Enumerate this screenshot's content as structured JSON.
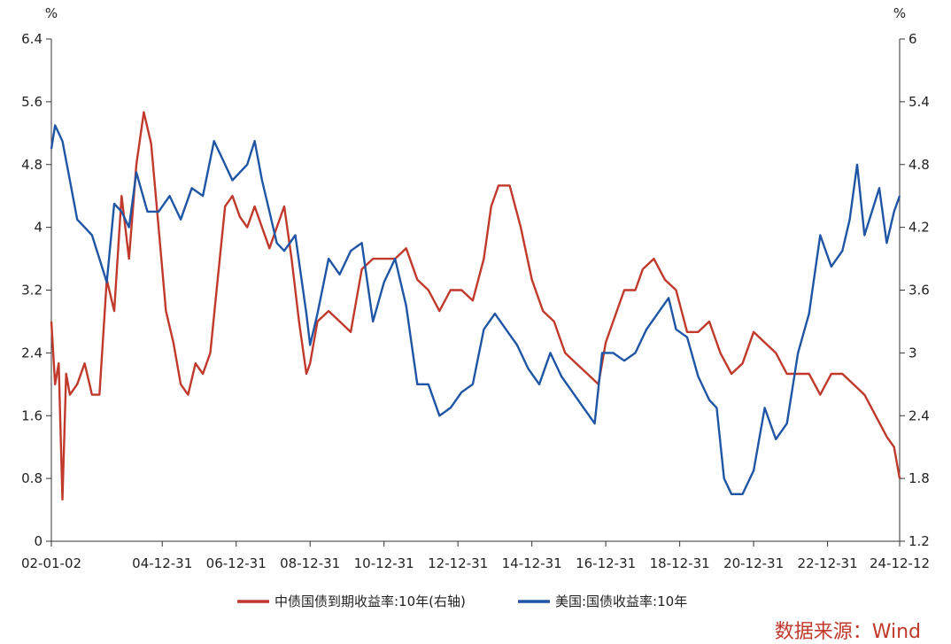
{
  "chart_data": {
    "type": "line",
    "title": "",
    "left_axis": {
      "unit": "%",
      "ylim": [
        0,
        6.4
      ],
      "ticks": [
        "0",
        "0.8",
        "1.6",
        "2.4",
        "3.2",
        "4",
        "4.8",
        "5.6",
        "6.4"
      ]
    },
    "right_axis": {
      "unit": "%",
      "ylim": [
        1.2,
        6
      ],
      "ticks": [
        "1.2",
        "1.8",
        "2.4",
        "3",
        "3.6",
        "4.2",
        "4.8",
        "5.4",
        "6"
      ]
    },
    "x_axis": {
      "ticks": [
        "02-01-02",
        "04-12-31",
        "06-12-31",
        "08-12-31",
        "10-12-31",
        "12-12-31",
        "14-12-31",
        "16-12-31",
        "18-12-31",
        "20-12-31",
        "22-12-31",
        "24-12-12"
      ],
      "tick_years": [
        2002.0,
        2005.0,
        2007.0,
        2009.0,
        2011.0,
        2013.0,
        2015.0,
        2017.0,
        2019.0,
        2021.0,
        2023.0,
        2024.95
      ]
    },
    "series": [
      {
        "name": "中债国债到期收益率:10年(右轴)",
        "axis": "right",
        "color": "#c0392b",
        "x": [
          2002.0,
          2002.1,
          2002.2,
          2002.3,
          2002.4,
          2002.5,
          2002.7,
          2002.9,
          2003.1,
          2003.3,
          2003.5,
          2003.7,
          2003.9,
          2004.1,
          2004.3,
          2004.5,
          2004.7,
          2004.9,
          2005.1,
          2005.3,
          2005.5,
          2005.7,
          2005.9,
          2006.1,
          2006.3,
          2006.5,
          2006.7,
          2006.9,
          2007.1,
          2007.3,
          2007.5,
          2007.7,
          2007.9,
          2008.1,
          2008.3,
          2008.5,
          2008.7,
          2008.9,
          2009.0,
          2009.2,
          2009.5,
          2009.8,
          2010.1,
          2010.4,
          2010.7,
          2011.0,
          2011.3,
          2011.6,
          2011.9,
          2012.2,
          2012.5,
          2012.8,
          2013.1,
          2013.4,
          2013.7,
          2013.9,
          2014.1,
          2014.4,
          2014.7,
          2015.0,
          2015.3,
          2015.6,
          2015.9,
          2016.2,
          2016.5,
          2016.8,
          2017.0,
          2017.2,
          2017.5,
          2017.8,
          2018.0,
          2018.3,
          2018.6,
          2018.9,
          2019.2,
          2019.5,
          2019.8,
          2020.1,
          2020.4,
          2020.7,
          2021.0,
          2021.3,
          2021.6,
          2021.9,
          2022.2,
          2022.5,
          2022.8,
          2023.1,
          2023.4,
          2023.7,
          2024.0,
          2024.3,
          2024.6,
          2024.8,
          2024.95
        ],
        "values": [
          3.3,
          2.7,
          2.9,
          1.6,
          2.8,
          2.6,
          2.7,
          2.9,
          2.6,
          2.6,
          3.7,
          3.4,
          4.5,
          3.9,
          4.8,
          5.3,
          5.0,
          4.2,
          3.4,
          3.1,
          2.7,
          2.6,
          2.9,
          2.8,
          3.0,
          3.7,
          4.4,
          4.5,
          4.3,
          4.2,
          4.4,
          4.2,
          4.0,
          4.2,
          4.4,
          3.9,
          3.3,
          2.8,
          2.9,
          3.3,
          3.4,
          3.3,
          3.2,
          3.8,
          3.9,
          3.9,
          3.9,
          4.0,
          3.7,
          3.6,
          3.4,
          3.6,
          3.6,
          3.5,
          3.9,
          4.4,
          4.6,
          4.6,
          4.2,
          3.7,
          3.4,
          3.3,
          3.0,
          2.9,
          2.8,
          2.7,
          3.1,
          3.3,
          3.6,
          3.6,
          3.8,
          3.9,
          3.7,
          3.6,
          3.2,
          3.2,
          3.3,
          3.0,
          2.8,
          2.9,
          3.2,
          3.1,
          3.0,
          2.8,
          2.8,
          2.8,
          2.6,
          2.8,
          2.8,
          2.7,
          2.6,
          2.4,
          2.2,
          2.1,
          1.8
        ]
      },
      {
        "name": "美国:国债收益率:10年",
        "axis": "left",
        "color": "#1f55a5",
        "x": [
          2002.0,
          2002.1,
          2002.3,
          2002.5,
          2002.7,
          2002.9,
          2003.1,
          2003.3,
          2003.5,
          2003.7,
          2003.9,
          2004.1,
          2004.3,
          2004.6,
          2004.9,
          2005.2,
          2005.5,
          2005.8,
          2006.1,
          2006.4,
          2006.7,
          2006.9,
          2007.1,
          2007.3,
          2007.5,
          2007.7,
          2007.9,
          2008.1,
          2008.3,
          2008.6,
          2008.9,
          2009.0,
          2009.2,
          2009.5,
          2009.8,
          2010.1,
          2010.4,
          2010.7,
          2011.0,
          2011.3,
          2011.6,
          2011.9,
          2012.2,
          2012.5,
          2012.8,
          2013.1,
          2013.4,
          2013.7,
          2014.0,
          2014.3,
          2014.6,
          2014.9,
          2015.2,
          2015.5,
          2015.8,
          2016.1,
          2016.4,
          2016.7,
          2016.9,
          2017.2,
          2017.5,
          2017.8,
          2018.1,
          2018.4,
          2018.7,
          2018.9,
          2019.2,
          2019.5,
          2019.8,
          2020.0,
          2020.2,
          2020.4,
          2020.7,
          2021.0,
          2021.3,
          2021.6,
          2021.9,
          2022.2,
          2022.5,
          2022.8,
          2023.1,
          2023.4,
          2023.6,
          2023.8,
          2024.0,
          2024.2,
          2024.4,
          2024.6,
          2024.8,
          2024.95
        ],
        "values": [
          5.0,
          5.3,
          5.1,
          4.6,
          4.1,
          4.0,
          3.9,
          3.6,
          3.3,
          4.3,
          4.2,
          4.0,
          4.7,
          4.2,
          4.2,
          4.4,
          4.1,
          4.5,
          4.4,
          5.1,
          4.8,
          4.6,
          4.7,
          4.8,
          5.1,
          4.6,
          4.2,
          3.8,
          3.7,
          3.9,
          2.9,
          2.5,
          2.9,
          3.6,
          3.4,
          3.7,
          3.8,
          2.8,
          3.3,
          3.6,
          3.0,
          2.0,
          2.0,
          1.6,
          1.7,
          1.9,
          2.0,
          2.7,
          2.9,
          2.7,
          2.5,
          2.2,
          2.0,
          2.4,
          2.1,
          1.9,
          1.7,
          1.5,
          2.4,
          2.4,
          2.3,
          2.4,
          2.7,
          2.9,
          3.1,
          2.7,
          2.6,
          2.1,
          1.8,
          1.7,
          0.8,
          0.6,
          0.6,
          0.9,
          1.7,
          1.3,
          1.5,
          2.4,
          2.9,
          3.9,
          3.5,
          3.7,
          4.1,
          4.8,
          3.9,
          4.2,
          4.5,
          3.8,
          4.2,
          4.4
        ]
      }
    ],
    "legend_position": "bottom",
    "grid": false
  },
  "source_label": "数据来源：Wind"
}
